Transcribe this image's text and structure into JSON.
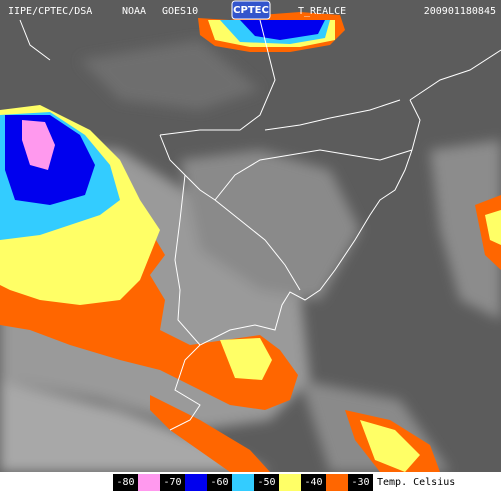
{
  "header": {
    "source": "IIPE/CPTEC/DSA",
    "satellite": "NOAA",
    "instrument": "GOES10",
    "logo": "CPTEC",
    "product": "T_REALCE",
    "timestamp": "200901180845"
  },
  "legend": {
    "entries": [
      -80,
      -70,
      -60,
      -50,
      -40,
      -30
    ],
    "colors": [
      "#ff99ee",
      "#0000ee",
      "#33ccff",
      "#ffff66",
      "#ff6600"
    ],
    "unit": "Temp. Celsius"
  }
}
